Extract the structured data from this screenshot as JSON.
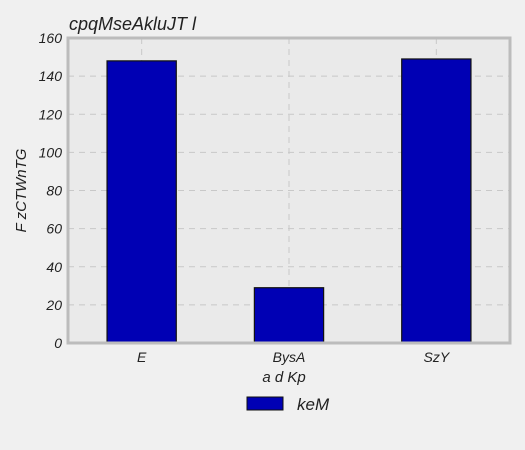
{
  "chart_data": {
    "type": "bar",
    "title": "cpqMseAkluJT l",
    "xlabel": "a d Kp",
    "ylabel": "F zCTWnTG",
    "categories": [
      "E",
      "BysA",
      "SzY"
    ],
    "series": [
      {
        "name": "keM",
        "values": [
          148,
          29,
          149
        ],
        "color": "#0000b4"
      }
    ],
    "ylim": [
      0,
      160
    ],
    "yticks": [
      0,
      20,
      40,
      60,
      80,
      100,
      120,
      140,
      160
    ],
    "grid": true,
    "legend_position": "bottom-center",
    "colors": {
      "background": "#f0f0f0",
      "plot_background": "#eaeaea",
      "frame": "#bcbcbc",
      "grid": "#c8c8c8",
      "bar_edge": "#111111"
    }
  }
}
